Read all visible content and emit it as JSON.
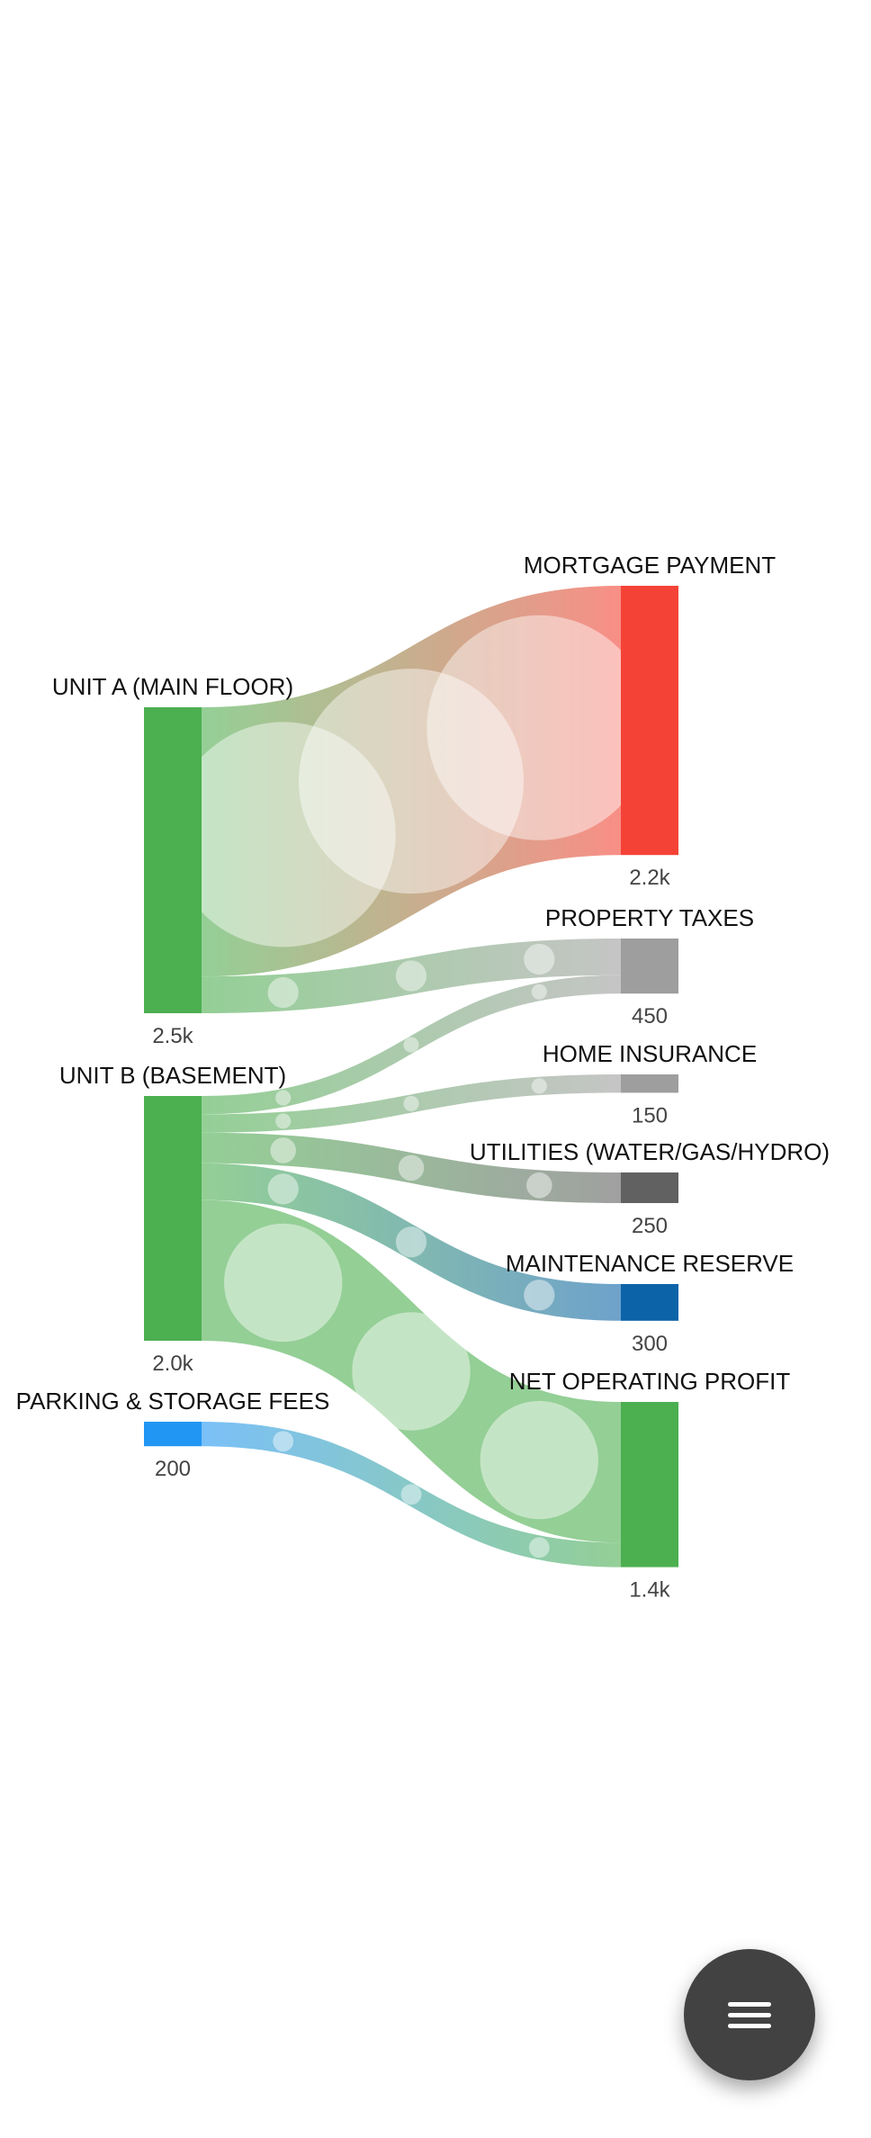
{
  "chart_data": {
    "type": "sankey",
    "title": "",
    "sources": [
      {
        "id": "unit_a",
        "label": "UNIT A (MAIN FLOOR)",
        "value": 2500,
        "value_label": "2.5k",
        "color": "#4CAF50"
      },
      {
        "id": "unit_b",
        "label": "UNIT B (BASEMENT)",
        "value": 2000,
        "value_label": "2.0k",
        "color": "#4CAF50"
      },
      {
        "id": "parking",
        "label": "PARKING & STORAGE FEES",
        "value": 200,
        "value_label": "200",
        "color": "#2196F3"
      }
    ],
    "targets": [
      {
        "id": "mortgage",
        "label": "MORTGAGE PAYMENT",
        "value": 2200,
        "value_label": "2.2k",
        "color": "#F44336"
      },
      {
        "id": "taxes",
        "label": "PROPERTY TAXES",
        "value": 450,
        "value_label": "450",
        "color": "#9E9E9E"
      },
      {
        "id": "insurance",
        "label": "HOME INSURANCE",
        "value": 150,
        "value_label": "150",
        "color": "#9E9E9E"
      },
      {
        "id": "utilities",
        "label": "UTILITIES (WATER/GAS/HYDRO)",
        "value": 250,
        "value_label": "250",
        "color": "#616161"
      },
      {
        "id": "maintenance",
        "label": "MAINTENANCE RESERVE",
        "value": 300,
        "value_label": "300",
        "color": "#0D63A8"
      },
      {
        "id": "profit",
        "label": "NET OPERATING PROFIT",
        "value": 1350,
        "value_label": "1.4k",
        "color": "#4CAF50"
      }
    ],
    "links": [
      {
        "source": "unit_a",
        "target": "mortgage",
        "value": 2200
      },
      {
        "source": "unit_a",
        "target": "taxes",
        "value": 300
      },
      {
        "source": "unit_b",
        "target": "taxes",
        "value": 150
      },
      {
        "source": "unit_b",
        "target": "insurance",
        "value": 150
      },
      {
        "source": "unit_b",
        "target": "utilities",
        "value": 250
      },
      {
        "source": "unit_b",
        "target": "maintenance",
        "value": 300
      },
      {
        "source": "unit_b",
        "target": "profit",
        "value": 1150
      },
      {
        "source": "parking",
        "target": "profit",
        "value": 200
      }
    ]
  },
  "fab": {
    "icon": "menu-icon"
  }
}
